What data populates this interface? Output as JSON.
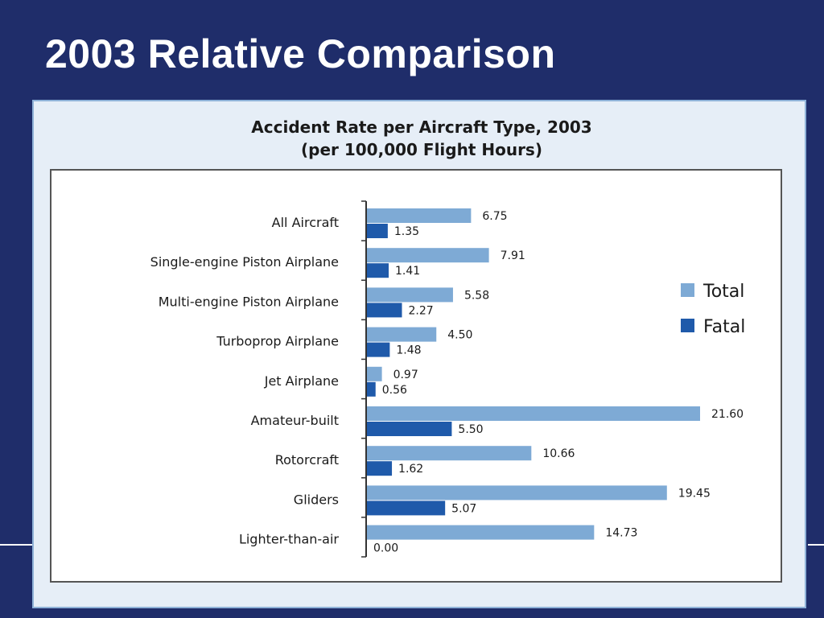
{
  "slide": {
    "title": "2003 Relative Comparison"
  },
  "chart_data": {
    "type": "bar",
    "orientation": "horizontal",
    "title": "Accident Rate per Aircraft Type, 2003",
    "subtitle": "(per 100,000 Flight Hours)",
    "categories": [
      "All Aircraft",
      "Single-engine Piston Airplane",
      "Multi-engine Piston Airplane",
      "Turboprop Airplane",
      "Jet Airplane",
      "Amateur-built",
      "Rotorcraft",
      "Gliders",
      "Lighter-than-air"
    ],
    "series": [
      {
        "name": "Total",
        "color": "#7eaad5",
        "values": [
          6.75,
          7.91,
          5.58,
          4.5,
          0.97,
          21.6,
          10.66,
          19.45,
          14.73
        ],
        "labels": [
          "6.75",
          "7.91",
          "5.58",
          "4.50",
          "0.97",
          "21.60",
          "10.66",
          "19.45",
          "14.73"
        ]
      },
      {
        "name": "Fatal",
        "color": "#1f5aaa",
        "values": [
          1.35,
          1.41,
          2.27,
          1.48,
          0.56,
          5.5,
          1.62,
          5.07,
          0.0
        ],
        "labels": [
          "1.35",
          "1.41",
          "2.27",
          "1.48",
          "0.56",
          "5.50",
          "1.62",
          "5.07",
          "0.00"
        ]
      }
    ],
    "legend_position": "right",
    "grid": false,
    "xlim": [
      0,
      21.6
    ]
  }
}
